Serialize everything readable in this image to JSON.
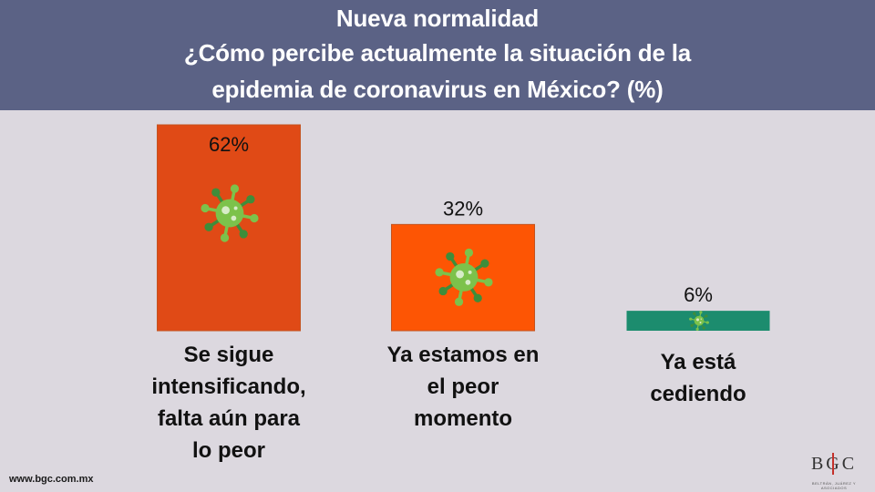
{
  "header": {
    "title_line1": "Nueva normalidad",
    "title_line2": "¿Cómo percibe actualmente la situación de la",
    "title_line3": "epidemia de coronavirus en México?  (%)"
  },
  "chart_data": {
    "type": "bar",
    "title": "Nueva normalidad ¿Cómo percibe actualmente la situación de la epidemia de coronavirus en México?  (%)",
    "categories": [
      [
        "Se sigue",
        "intensificando,",
        "falta aún para",
        "lo peor"
      ],
      [
        "Ya estamos en",
        "el peor",
        "momento"
      ],
      [
        "Ya está",
        "cediendo"
      ]
    ],
    "values": [
      62,
      32,
      6
    ],
    "value_labels": [
      "62%",
      "32%",
      "6%"
    ],
    "bar_colors": [
      "#e04a16",
      "#fd5504",
      "#1c8c6e"
    ],
    "ylim": [
      0,
      62
    ],
    "grid": false,
    "legend": "none"
  },
  "colors": {
    "header_bg": "#5b6285",
    "page_bg": "#dcd8df",
    "virus_light": "#7cc24b",
    "virus_dark": "#3e8d3a"
  },
  "icons": [
    "virus-icon"
  ],
  "footer": {
    "url": "www.bgc.com.mx",
    "logo_text": "BGC",
    "logo_subtext": "BELTRÁN, JUÁREZ Y ASOCIADOS"
  }
}
